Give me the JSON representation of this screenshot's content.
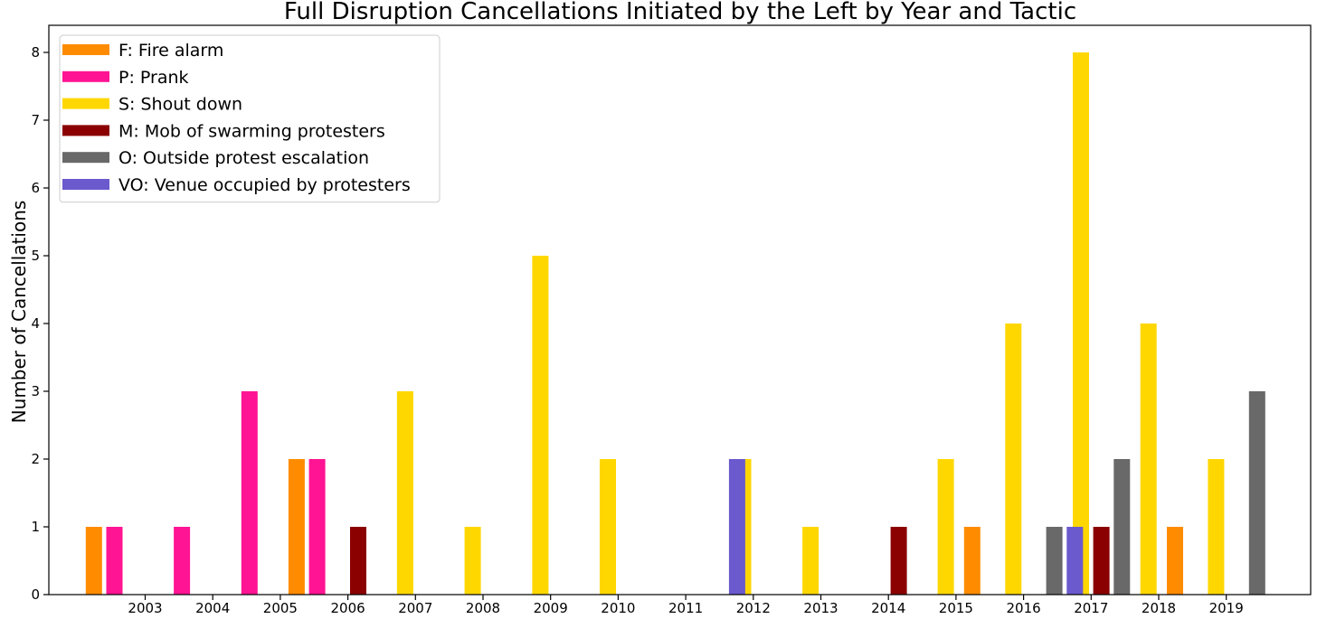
{
  "chart_data": {
    "type": "bar",
    "title": "Full Disruption Cancellations Initiated by the Left by Year and Tactic",
    "xlabel": "",
    "ylabel": "Number of Cancellations",
    "ylim": [
      0,
      8.4
    ],
    "yticks": [
      0,
      1,
      2,
      3,
      4,
      5,
      6,
      7,
      8
    ],
    "categories": [
      "2003",
      "2004",
      "2005",
      "2006",
      "2007",
      "2008",
      "2009",
      "2010",
      "2011",
      "2012",
      "2013",
      "2014",
      "2015",
      "2016",
      "2017",
      "2018",
      "2019"
    ],
    "legend_position": "top-left",
    "series": [
      {
        "name": "F: Fire alarm",
        "color": "#FF8C00",
        "values": [
          1,
          0,
          0,
          2,
          0,
          0,
          0,
          0,
          0,
          0,
          0,
          0,
          0,
          1,
          0,
          0,
          1
        ]
      },
      {
        "name": "P: Prank",
        "color": "#FF1493",
        "values": [
          1,
          1,
          3,
          2,
          0,
          0,
          0,
          0,
          0,
          0,
          0,
          0,
          0,
          0,
          0,
          0,
          0
        ]
      },
      {
        "name": "S: Shout down",
        "color": "#FFD700",
        "values": [
          0,
          0,
          0,
          0,
          3,
          1,
          5,
          2,
          0,
          2,
          1,
          0,
          2,
          4,
          8,
          4,
          2
        ]
      },
      {
        "name": "M: Mob of swarming protesters",
        "color": "#8B0000",
        "values": [
          0,
          0,
          0,
          1,
          0,
          0,
          0,
          0,
          0,
          0,
          0,
          1,
          0,
          0,
          1,
          0,
          0
        ]
      },
      {
        "name": "O: Outside protest escalation",
        "color": "#696969",
        "values": [
          0,
          0,
          0,
          0,
          0,
          0,
          0,
          0,
          0,
          0,
          0,
          0,
          0,
          1,
          2,
          0,
          3
        ]
      },
      {
        "name": "VO: Venue occupied by protesters",
        "color": "#6A5ACD",
        "values": [
          0,
          0,
          0,
          0,
          0,
          0,
          0,
          0,
          2,
          0,
          0,
          0,
          0,
          1,
          0,
          0,
          0
        ]
      }
    ]
  }
}
